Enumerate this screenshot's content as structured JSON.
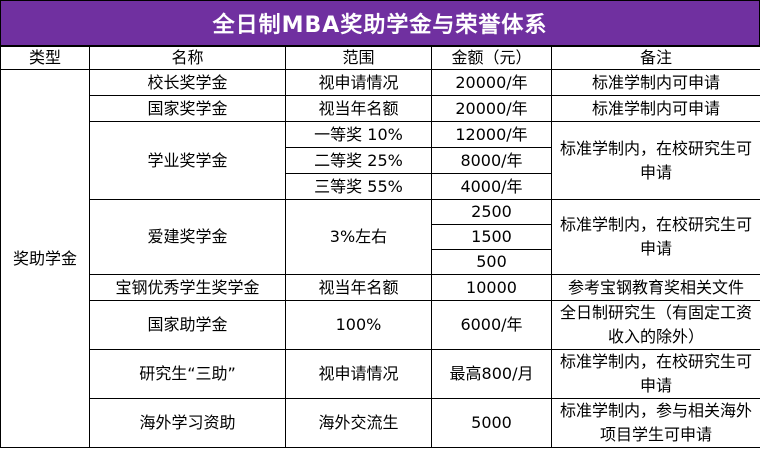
{
  "title": "全日制MBA奖助学金与荣誉体系",
  "headers": [
    "类型",
    "名称",
    "范围",
    "金额（元）",
    "备注"
  ],
  "category": "奖助学金",
  "rows": {
    "r0": {
      "name": "校长奖学金",
      "scope": "视申请情况",
      "amount": "20000/年",
      "note": "标准学制内可申请"
    },
    "r1": {
      "name": "国家奖学金",
      "scope": "视当年名额",
      "amount": "20000/年",
      "note": "标准学制内可申请"
    },
    "r2": {
      "name": "学业奖学金",
      "tiers": [
        {
          "scope": "一等奖 10%",
          "amount": "12000/年"
        },
        {
          "scope": "二等奖 25%",
          "amount": "8000/年"
        },
        {
          "scope": "三等奖 55%",
          "amount": "4000/年"
        }
      ],
      "note": "标准学制内，在校研究生可申请"
    },
    "r3": {
      "name": "爱建奖学金",
      "scope": "3%左右",
      "amounts": [
        "2500",
        "1500",
        "500"
      ],
      "note": "标准学制内，在校研究生可申请"
    },
    "r4": {
      "name": "宝钢优秀学生奖学金",
      "scope": "视当年名额",
      "amount": "10000",
      "note": "参考宝钢教育奖相关文件"
    },
    "r5": {
      "name": "国家助学金",
      "scope": "100%",
      "amount": "6000/年",
      "note": "全日制研究生（有固定工资收入的除外）"
    },
    "r6": {
      "name": "研究生“三助”",
      "scope": "视申请情况",
      "amount": "最高800/月",
      "note": "标准学制内，在校研究生可申请"
    },
    "r7": {
      "name": "海外学习资助",
      "scope": "海外交流生",
      "amount": "5000",
      "note": "标准学制内，参与相关海外项目学生可申请"
    }
  },
  "colors": {
    "title_bg": "#7030a0",
    "title_text": "#ffffff",
    "border": "#000000"
  }
}
